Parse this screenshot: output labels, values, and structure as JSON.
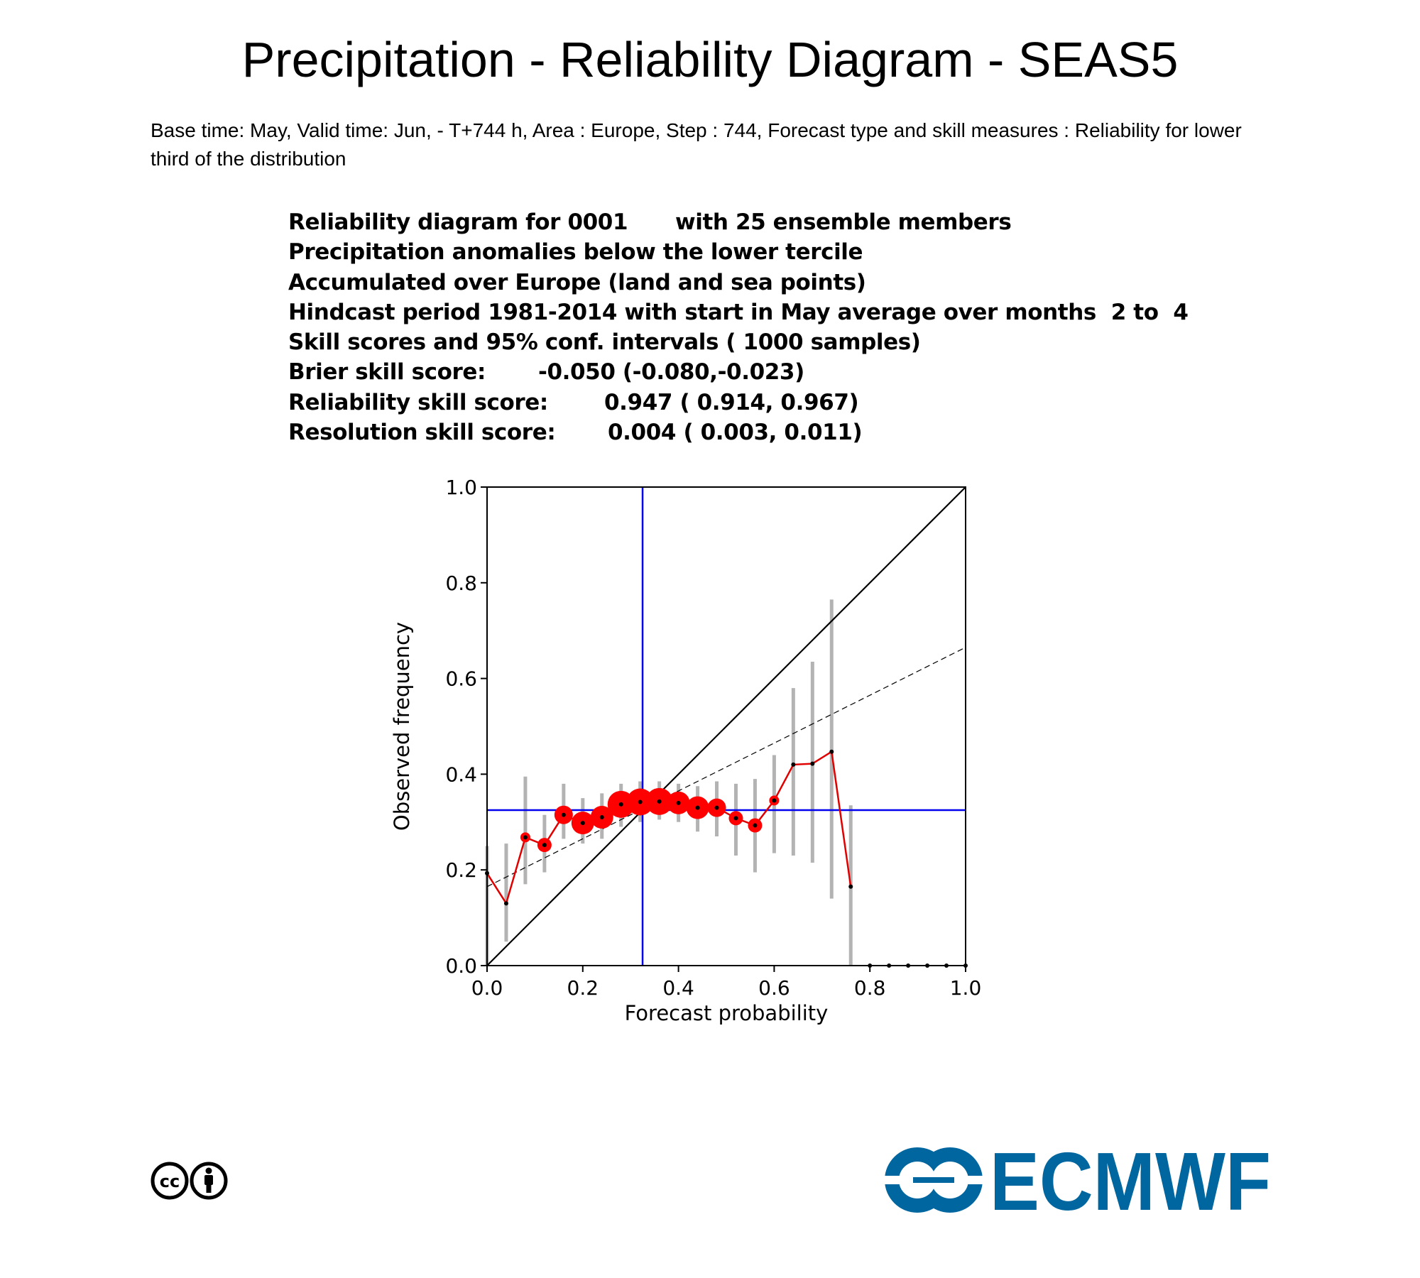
{
  "page": {
    "title": "Precipitation - Reliability Diagram - SEAS5",
    "subtitle": "Base time: May, Valid time: Jun, - T+744 h, Area : Europe, Step : 744, Forecast type and skill measures : Reliability for lower third of the distribution"
  },
  "info": {
    "line1": {
      "a": "Reliability diagram for 0001",
      "b": "with 25 ensemble members"
    },
    "line2": "Precipitation anomalies below the lower tercile",
    "line3": "Accumulated over Europe (land and sea points)",
    "line4": "Hindcast period 1981-2014 with start in May average over months  2 to  4",
    "line5": "Skill scores and 95% conf. intervals ( 1000 samples)",
    "brier": {
      "label": "Brier skill score:",
      "value": "-0.050 (-0.080,-0.023)"
    },
    "reliability": {
      "label": "Reliability skill score:",
      "value": "0.947 ( 0.914, 0.967)"
    },
    "resolution": {
      "label": "Resolution skill score:",
      "value": "0.004 ( 0.003, 0.011)"
    }
  },
  "chart_data": {
    "type": "scatter",
    "xlabel": "Forecast probability",
    "ylabel": "Observed frequency",
    "xlim": [
      0,
      1
    ],
    "ylim": [
      0,
      1
    ],
    "xticks": [
      "0.0",
      "0.2",
      "0.4",
      "0.6",
      "0.8",
      "1.0"
    ],
    "yticks": [
      "0.0",
      "0.2",
      "0.4",
      "0.6",
      "0.8",
      "1.0"
    ],
    "climatology": 0.325,
    "regression_line": [
      [
        0,
        0.165
      ],
      [
        1,
        0.665
      ]
    ],
    "points": [
      {
        "x": 0.0,
        "y": 0.193,
        "lo": 0.0,
        "hi": 0.25,
        "size": 0
      },
      {
        "x": 0.04,
        "y": 0.13,
        "lo": 0.05,
        "hi": 0.255,
        "size": 0
      },
      {
        "x": 0.08,
        "y": 0.268,
        "lo": 0.17,
        "hi": 0.395,
        "size": 1
      },
      {
        "x": 0.12,
        "y": 0.252,
        "lo": 0.195,
        "hi": 0.315,
        "size": 2
      },
      {
        "x": 0.16,
        "y": 0.315,
        "lo": 0.265,
        "hi": 0.38,
        "size": 3
      },
      {
        "x": 0.2,
        "y": 0.298,
        "lo": 0.255,
        "hi": 0.35,
        "size": 4
      },
      {
        "x": 0.24,
        "y": 0.31,
        "lo": 0.265,
        "hi": 0.36,
        "size": 4
      },
      {
        "x": 0.28,
        "y": 0.337,
        "lo": 0.29,
        "hi": 0.38,
        "size": 5
      },
      {
        "x": 0.32,
        "y": 0.342,
        "lo": 0.3,
        "hi": 0.385,
        "size": 5
      },
      {
        "x": 0.36,
        "y": 0.343,
        "lo": 0.305,
        "hi": 0.385,
        "size": 5
      },
      {
        "x": 0.4,
        "y": 0.34,
        "lo": 0.3,
        "hi": 0.38,
        "size": 4
      },
      {
        "x": 0.44,
        "y": 0.33,
        "lo": 0.28,
        "hi": 0.375,
        "size": 4
      },
      {
        "x": 0.48,
        "y": 0.33,
        "lo": 0.27,
        "hi": 0.385,
        "size": 3
      },
      {
        "x": 0.52,
        "y": 0.308,
        "lo": 0.23,
        "hi": 0.38,
        "size": 2
      },
      {
        "x": 0.56,
        "y": 0.293,
        "lo": 0.195,
        "hi": 0.39,
        "size": 2
      },
      {
        "x": 0.6,
        "y": 0.345,
        "lo": 0.235,
        "hi": 0.44,
        "size": 1
      },
      {
        "x": 0.64,
        "y": 0.42,
        "lo": 0.23,
        "hi": 0.58,
        "size": 0
      },
      {
        "x": 0.68,
        "y": 0.422,
        "lo": 0.215,
        "hi": 0.635,
        "size": 0
      },
      {
        "x": 0.72,
        "y": 0.447,
        "lo": 0.14,
        "hi": 0.765,
        "size": 0
      },
      {
        "x": 0.76,
        "y": 0.165,
        "lo": 0.0,
        "hi": 0.335,
        "size": 0
      }
    ],
    "empty_bins": [
      0.8,
      0.84,
      0.88,
      0.92,
      0.96,
      1.0
    ],
    "colors": {
      "curve": "#e00000",
      "dots": "#ff0000",
      "errorbar": "#b3b3b3",
      "climatology": "#0000ee",
      "diagonal": "#000000",
      "regression": "#000000"
    }
  },
  "footer": {
    "cc_icon": "cc-by-icon",
    "logo_text": "ECMWF",
    "logo_color": "#00669f"
  }
}
